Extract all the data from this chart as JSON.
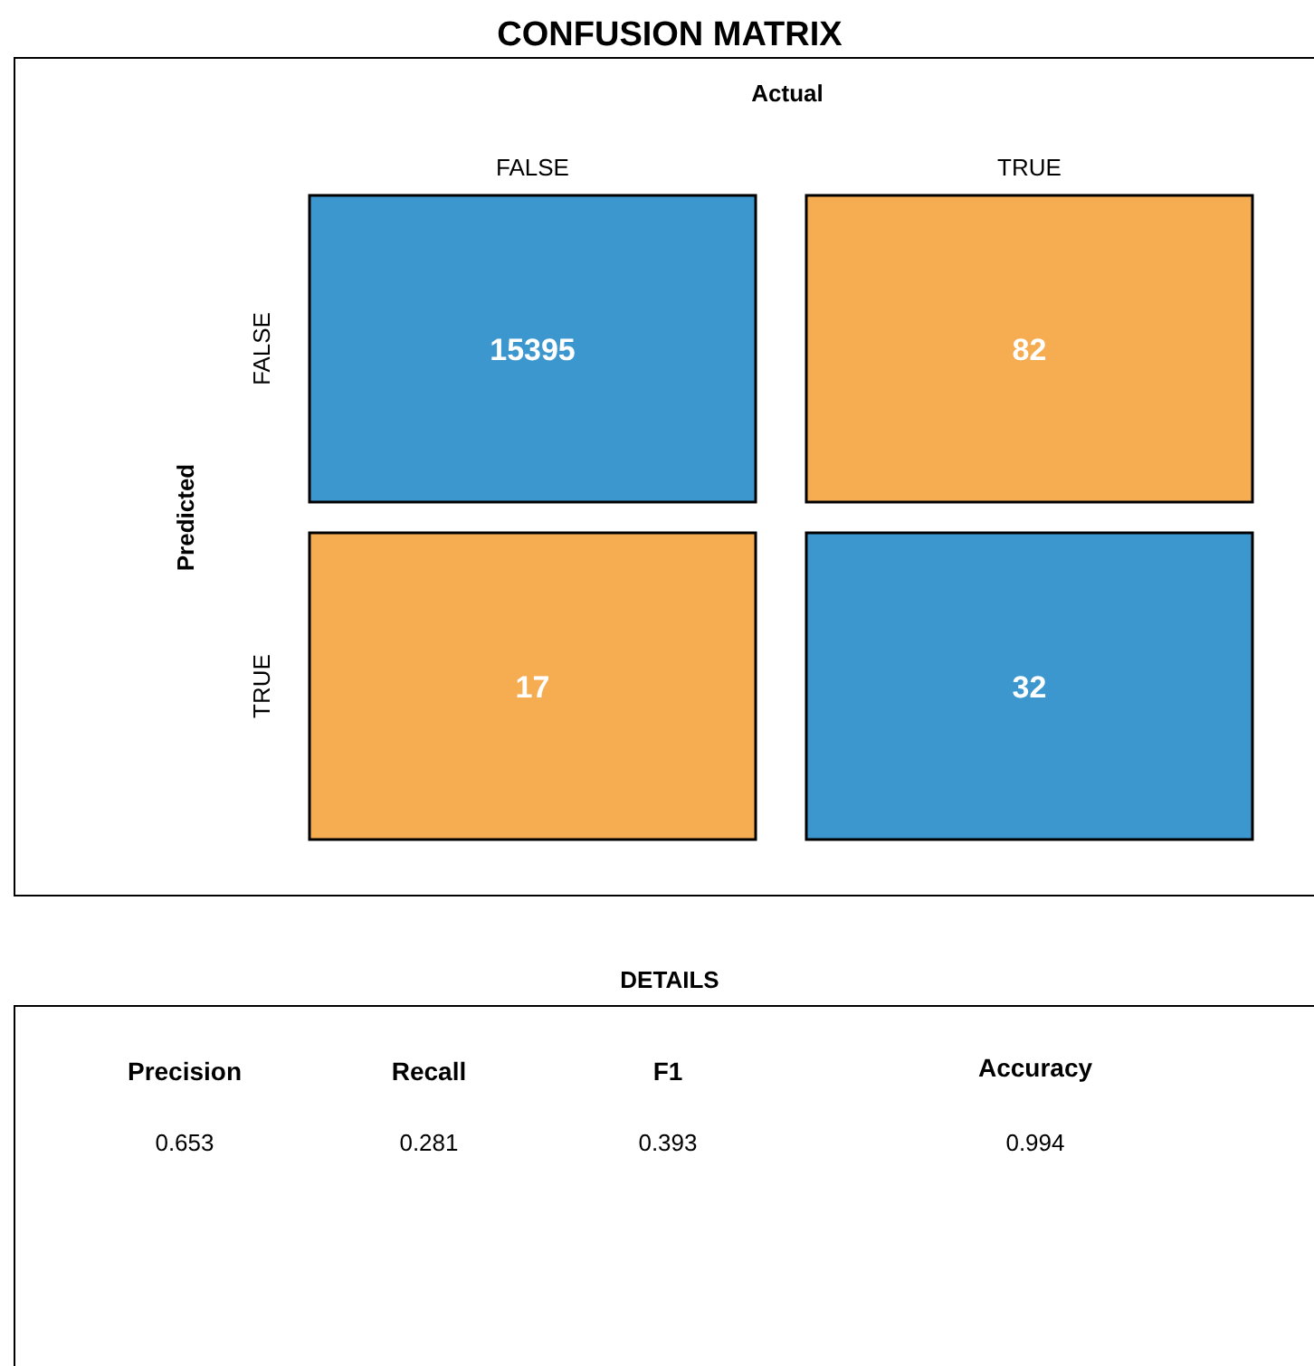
{
  "chart_data": [
    {
      "type": "heatmap",
      "title": "CONFUSION MATRIX",
      "xlabel": "Actual",
      "ylabel": "Predicted",
      "categories": [
        "FALSE",
        "TRUE"
      ],
      "y_categories": [
        "FALSE",
        "TRUE"
      ],
      "cells": [
        [
          15395,
          82
        ],
        [
          17,
          32
        ]
      ],
      "colors": [
        [
          "#3d97cf",
          "#f6ad52"
        ],
        [
          "#f6ad52",
          "#3d97cf"
        ]
      ],
      "data_labels": true
    },
    {
      "type": "other",
      "title": "DETAILS",
      "categories": [
        "Precision",
        "Recall",
        "F1",
        "Accuracy"
      ],
      "values": [
        0.653,
        0.281,
        0.393,
        0.994
      ],
      "data_labels": true
    }
  ]
}
